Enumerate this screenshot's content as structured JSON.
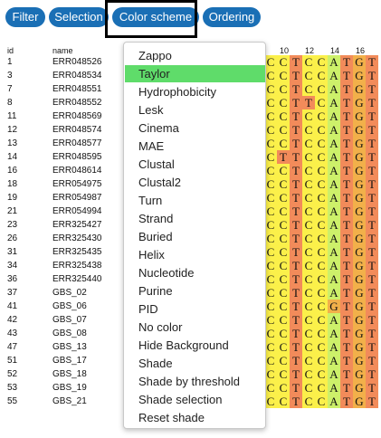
{
  "toolbar": {
    "filter_label": "Filter",
    "selection_label": "Selection",
    "color_scheme_label": "Color scheme",
    "ordering_label": "Ordering"
  },
  "table": {
    "id_header": "id",
    "name_header": "name",
    "ruler": [
      "10",
      "12",
      "14",
      "16"
    ],
    "rows": [
      {
        "id": "1",
        "name": "ERR048526"
      },
      {
        "id": "3",
        "name": "ERR048534"
      },
      {
        "id": "7",
        "name": "ERR048551"
      },
      {
        "id": "8",
        "name": "ERR048552"
      },
      {
        "id": "11",
        "name": "ERR048569"
      },
      {
        "id": "12",
        "name": "ERR048574"
      },
      {
        "id": "13",
        "name": "ERR048577"
      },
      {
        "id": "14",
        "name": "ERR048595"
      },
      {
        "id": "16",
        "name": "ERR048614"
      },
      {
        "id": "18",
        "name": "ERR054975"
      },
      {
        "id": "19",
        "name": "ERR054987"
      },
      {
        "id": "21",
        "name": "ERR054994"
      },
      {
        "id": "23",
        "name": "ERR325427"
      },
      {
        "id": "26",
        "name": "ERR325430"
      },
      {
        "id": "31",
        "name": "ERR325435"
      },
      {
        "id": "34",
        "name": "ERR325438"
      },
      {
        "id": "36",
        "name": "ERR325440"
      },
      {
        "id": "37",
        "name": "GBS_02"
      },
      {
        "id": "41",
        "name": "GBS_06"
      },
      {
        "id": "42",
        "name": "GBS_07"
      },
      {
        "id": "43",
        "name": "GBS_08"
      },
      {
        "id": "47",
        "name": "GBS_13"
      },
      {
        "id": "51",
        "name": "GBS_17"
      },
      {
        "id": "52",
        "name": "GBS_18"
      },
      {
        "id": "53",
        "name": "GBS_19"
      },
      {
        "id": "55",
        "name": "GBS_21"
      }
    ],
    "sequences": [
      "CCTCCATGT",
      "CCTCCATGT",
      "CCTCCATGT",
      "CCTTCATGT",
      "CCTCCATGT",
      "CCTCCATGT",
      "CCTCCATGT",
      "CTTCCATGT",
      "CCTCCATGT",
      "CCTCCATGT",
      "CCTCCATGT",
      "CCTCCATGT",
      "CCTCCATGT",
      "CCTCCATGT",
      "CCTCCATGT",
      "CCTCCATGT",
      "CCTCCATGT",
      "CCTCCATGT",
      "CCTCCGTGT",
      "CCTCCATGT",
      "CCTCCATGT",
      "CCTCCATGT",
      "CCTCCATGT",
      "CCTCCATGT",
      "CCTCCATGT",
      "CCTCCATGT"
    ]
  },
  "colors": {
    "C": "#fbf04a",
    "T": "#f28b5a",
    "A": "#cdf06a",
    "G": "#f2b04a",
    "menu_active": "#5fdc6a",
    "button": "#1a6fb5"
  },
  "menu": {
    "items": [
      "Zappo",
      "Taylor",
      "Hydrophobicity",
      "Lesk",
      "Cinema",
      "MAE",
      "Clustal",
      "Clustal2",
      "Turn",
      "Strand",
      "Buried",
      "Helix",
      "Nucleotide",
      "Purine",
      "PID",
      "No color",
      "Hide Background",
      "Shade",
      "Shade by threshold",
      "Shade selection",
      "Reset shade"
    ],
    "active_index": 1
  }
}
